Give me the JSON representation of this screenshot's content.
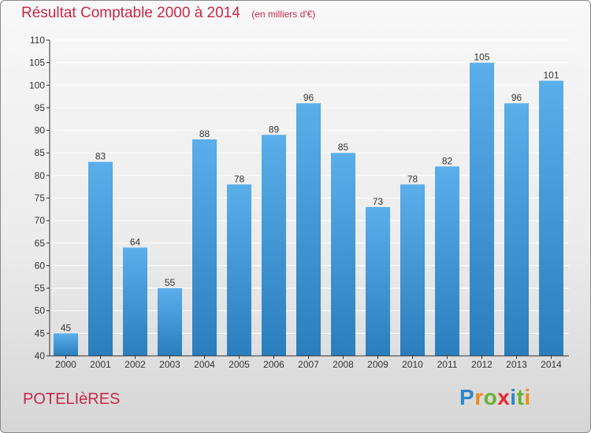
{
  "colors": {
    "bar_top": "#5aaeea",
    "bar_bottom": "#2a7ebd",
    "title": "#c8284a",
    "axis": "#333333",
    "grid": "#ffffff"
  },
  "footer": {
    "commune": "POTELIèRES",
    "logo_letters": [
      {
        "ch": "P",
        "color": "#2e86c9"
      },
      {
        "ch": "r",
        "color": "#f08a1c"
      },
      {
        "ch": "o",
        "color": "#67b32e"
      },
      {
        "ch": "x",
        "color": "#e8282e"
      },
      {
        "ch": "i",
        "color": "#2e86c9"
      },
      {
        "ch": "t",
        "color": "#67b32e"
      },
      {
        "ch": "i",
        "color": "#f08a1c"
      }
    ]
  },
  "chart_data": {
    "type": "bar",
    "title": "Résultat Comptable 2000 à 2014",
    "subtitle": "(en milliers d'€)",
    "xlabel": "",
    "ylabel": "",
    "categories": [
      "2000",
      "2001",
      "2002",
      "2003",
      "2004",
      "2005",
      "2006",
      "2007",
      "2008",
      "2009",
      "2010",
      "2011",
      "2012",
      "2013",
      "2014"
    ],
    "values": [
      45,
      83,
      64,
      55,
      88,
      78,
      89,
      96,
      85,
      73,
      78,
      82,
      105,
      96,
      101
    ],
    "ylim": [
      40,
      110
    ],
    "yticks": [
      40,
      45,
      50,
      55,
      60,
      65,
      70,
      75,
      80,
      85,
      90,
      95,
      100,
      105,
      110
    ],
    "grid": true,
    "legend": "none"
  }
}
